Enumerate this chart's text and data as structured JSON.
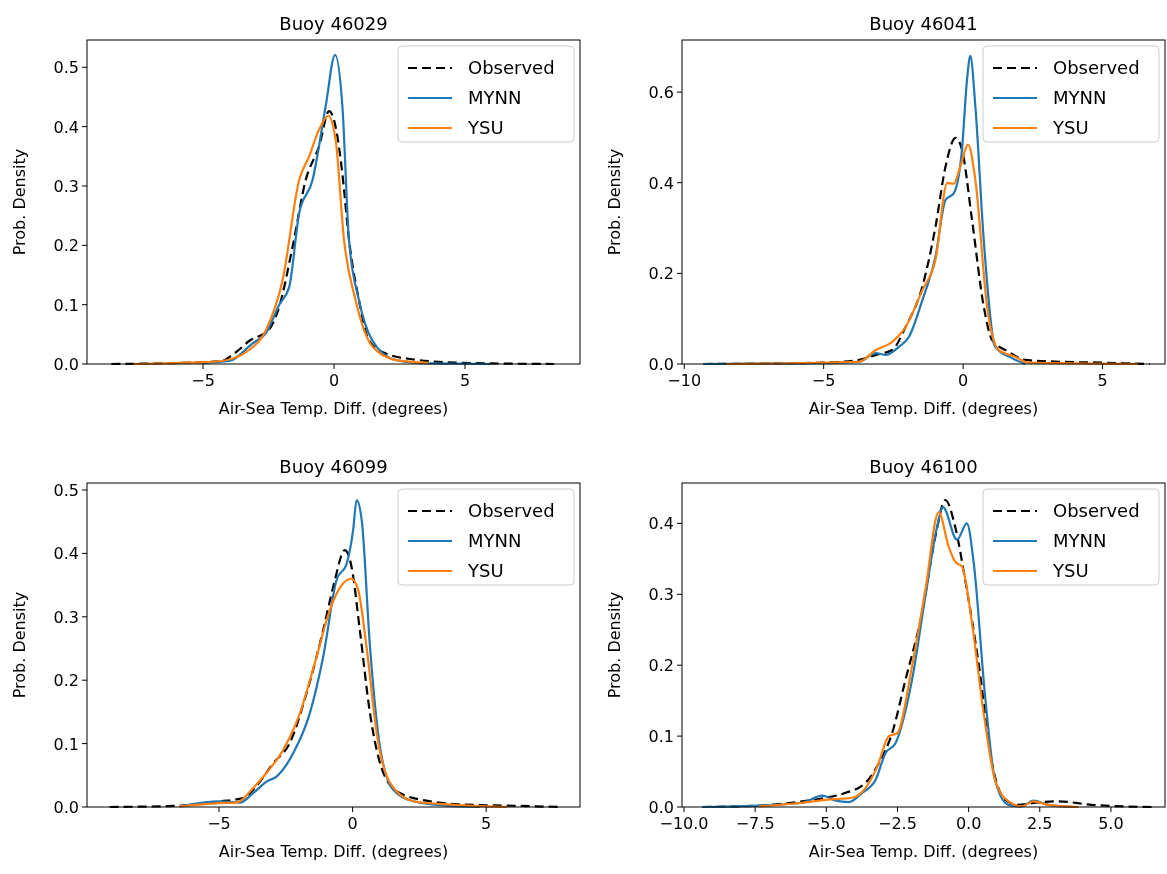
{
  "chart_data": [
    {
      "type": "line",
      "title": "Buoy 46029",
      "xlabel": "Air-Sea Temp. Diff. (degrees)",
      "ylabel": "Prob. Density",
      "xlim": [
        -9.43,
        9.39
      ],
      "ylim": [
        0,
        0.546
      ],
      "xticks": [
        -5,
        0,
        5
      ],
      "yticks": [
        {
          "value": 0,
          "label": "0.0"
        },
        {
          "value": 0.1,
          "label": "0.1"
        },
        {
          "value": 0.2,
          "label": "0.2"
        },
        {
          "value": 0.3,
          "label": "0.3"
        },
        {
          "value": 0.4,
          "label": "0.4"
        },
        {
          "value": 0.5,
          "label": "0.5"
        }
      ],
      "grid": false,
      "legend": "top right",
      "series": [
        {
          "name": "Observed",
          "color": "#000000",
          "line_style": "dashed",
          "x": [
            -8.5,
            -5,
            -4.3,
            -3.8,
            -3.2,
            -2.5,
            -2.09,
            -1.58,
            -1.08,
            -0.57,
            -0.19,
            0.06,
            0.32,
            0.57,
            0.95,
            1.33,
            1.96,
            2.97,
            4.9,
            8.4
          ],
          "values": [
            0,
            0.003,
            0.005,
            0.018,
            0.04,
            0.057,
            0.097,
            0.198,
            0.31,
            0.367,
            0.426,
            0.4,
            0.32,
            0.21,
            0.108,
            0.04,
            0.018,
            0.008,
            0.002,
            0
          ]
        },
        {
          "name": "MYNN",
          "color": "#1f77b4",
          "line_style": "solid",
          "x": [
            -5,
            -4,
            -3.1,
            -2.6,
            -2.09,
            -1.71,
            -1.33,
            -0.82,
            -0.32,
            0.04,
            0.32,
            0.57,
            0.95,
            1.46,
            2.34,
            3.6,
            6
          ],
          "values": [
            0.002,
            0.005,
            0.035,
            0.052,
            0.1,
            0.13,
            0.254,
            0.31,
            0.434,
            0.521,
            0.434,
            0.21,
            0.108,
            0.04,
            0.007,
            0.001,
            0
          ]
        },
        {
          "name": "YSU",
          "color": "#ff7f0e",
          "line_style": "solid",
          "x": [
            -7.66,
            -5,
            -4.3,
            -3.23,
            -2.6,
            -1.96,
            -1.33,
            -0.95,
            -0.57,
            -0.22,
            0.06,
            0.38,
            0.82,
            1.46,
            2.34,
            3.6
          ],
          "values": [
            0,
            0.003,
            0.005,
            0.024,
            0.057,
            0.142,
            0.31,
            0.35,
            0.395,
            0.418,
            0.378,
            0.21,
            0.108,
            0.03,
            0.007,
            0.002
          ]
        }
      ]
    },
    {
      "type": "line",
      "title": "Buoy 46041",
      "xlabel": "Air-Sea Temp. Diff. (degrees)",
      "ylabel": "Prob. Density",
      "xlim": [
        -10.08,
        7.24
      ],
      "ylim": [
        0,
        0.715
      ],
      "xticks": [
        -10,
        -5,
        0,
        5
      ],
      "yticks": [
        {
          "value": 0,
          "label": "0.0"
        },
        {
          "value": 0.2,
          "label": "0.2"
        },
        {
          "value": 0.4,
          "label": "0.4"
        },
        {
          "value": 0.6,
          "label": "0.6"
        }
      ],
      "grid": false,
      "legend": "top right",
      "series": [
        {
          "name": "Observed",
          "color": "#000000",
          "line_style": "dashed",
          "x": [
            -9.3,
            -5,
            -3.73,
            -3.13,
            -2.54,
            -2.06,
            -1.46,
            -0.99,
            -0.63,
            -0.27,
            -0.04,
            0.32,
            0.74,
            1.04,
            1.63,
            2.23,
            3.42,
            4.96,
            6.69
          ],
          "values": [
            0,
            0.003,
            0.009,
            0.02,
            0.031,
            0.082,
            0.171,
            0.303,
            0.436,
            0.499,
            0.473,
            0.318,
            0.127,
            0.053,
            0.027,
            0.009,
            0.005,
            0.003,
            0
          ]
        },
        {
          "name": "MYNN",
          "color": "#1f77b4",
          "line_style": "solid",
          "x": [
            -9.32,
            -5,
            -3.73,
            -3.13,
            -2.77,
            -2.3,
            -1.94,
            -1.46,
            -0.99,
            -0.63,
            -0.33,
            -0.04,
            0.14,
            0.26,
            0.44,
            0.74,
            1.15,
            1.75,
            2.23
          ],
          "values": [
            0,
            0.002,
            0.005,
            0.024,
            0.02,
            0.038,
            0.06,
            0.141,
            0.237,
            0.362,
            0.377,
            0.473,
            0.627,
            0.68,
            0.568,
            0.274,
            0.038,
            0.013,
            0
          ]
        },
        {
          "name": "YSU",
          "color": "#ff7f0e",
          "line_style": "solid",
          "x": [
            -8.49,
            -3.73,
            -3.13,
            -2.54,
            -2.06,
            -1.46,
            -0.99,
            -0.57,
            -0.33,
            -0.1,
            0.18,
            0.44,
            0.86,
            1.27,
            1.87,
            2.35,
            6.27
          ],
          "values": [
            0,
            0.005,
            0.031,
            0.049,
            0.082,
            0.163,
            0.23,
            0.399,
            0.398,
            0.436,
            0.484,
            0.406,
            0.127,
            0.031,
            0.016,
            0.003,
            0
          ]
        }
      ]
    },
    {
      "type": "line",
      "title": "Buoy 46099",
      "xlabel": "Air-Sea Temp. Diff. (degrees)",
      "ylabel": "Prob. Density",
      "xlim": [
        -9.94,
        8.51
      ],
      "ylim": [
        0,
        0.511
      ],
      "xticks": [
        -5,
        0,
        5
      ],
      "yticks": [
        {
          "value": 0,
          "label": "0.0"
        },
        {
          "value": 0.1,
          "label": "0.1"
        },
        {
          "value": 0.2,
          "label": "0.2"
        },
        {
          "value": 0.3,
          "label": "0.3"
        },
        {
          "value": 0.4,
          "label": "0.4"
        },
        {
          "value": 0.5,
          "label": "0.5"
        }
      ],
      "grid": false,
      "legend": "top right",
      "series": [
        {
          "name": "Observed",
          "color": "#000000",
          "line_style": "dashed",
          "x": [
            -9.09,
            -6.47,
            -4.97,
            -4.1,
            -3.6,
            -2.97,
            -2.35,
            -1.72,
            -1.1,
            -0.72,
            -0.29,
            -0.04,
            0.27,
            0.65,
            1.15,
            1.77,
            2.9,
            4.14,
            6.02,
            7.77
          ],
          "values": [
            0,
            0.002,
            0.009,
            0.014,
            0.033,
            0.069,
            0.101,
            0.18,
            0.279,
            0.348,
            0.405,
            0.379,
            0.279,
            0.148,
            0.054,
            0.022,
            0.009,
            0.004,
            0.002,
            0
          ]
        },
        {
          "name": "MYNN",
          "color": "#1f77b4",
          "line_style": "solid",
          "x": [
            -6.47,
            -4.97,
            -4.22,
            -3.72,
            -3.22,
            -2.85,
            -2.22,
            -1.6,
            -1.1,
            -0.6,
            -0.22,
            0.02,
            0.15,
            0.34,
            0.65,
            1.02,
            1.52,
            2.27,
            3.52,
            4.77
          ],
          "values": [
            0.001,
            0.009,
            0.007,
            0.022,
            0.04,
            0.048,
            0.085,
            0.148,
            0.237,
            0.358,
            0.384,
            0.437,
            0.484,
            0.453,
            0.253,
            0.096,
            0.027,
            0.009,
            0.002,
            0
          ]
        },
        {
          "name": "YSU",
          "color": "#ff7f0e",
          "line_style": "solid",
          "x": [
            -6.47,
            -4.97,
            -4.34,
            -3.72,
            -3.22,
            -2.6,
            -1.97,
            -1.35,
            -0.85,
            -0.41,
            -0.04,
            0.21,
            0.52,
            0.9,
            1.4,
            2.27,
            3.52,
            5.77
          ],
          "values": [
            0.001,
            0.006,
            0.007,
            0.03,
            0.054,
            0.09,
            0.148,
            0.237,
            0.311,
            0.35,
            0.36,
            0.342,
            0.253,
            0.117,
            0.038,
            0.009,
            0.004,
            0
          ]
        }
      ]
    },
    {
      "type": "line",
      "title": "Buoy 46100",
      "xlabel": "Air-Sea Temp. Diff. (degrees)",
      "ylabel": "Prob. Density",
      "xlim": [
        -10.07,
        6.9
      ],
      "ylim": [
        0,
        0.457
      ],
      "xticks": [
        {
          "value": -10,
          "label": "−10.0"
        },
        {
          "value": -7.5,
          "label": "−7.5"
        },
        {
          "value": -5,
          "label": "−5.0"
        },
        {
          "value": -2.5,
          "label": "−2.5"
        },
        {
          "value": 0,
          "label": "0.0"
        },
        {
          "value": 2.5,
          "label": "2.5"
        },
        {
          "value": 5,
          "label": "5.0"
        }
      ],
      "yticks": [
        {
          "value": 0,
          "label": "0.0"
        },
        {
          "value": 0.1,
          "label": "0.1"
        },
        {
          "value": 0.2,
          "label": "0.2"
        },
        {
          "value": 0.3,
          "label": "0.3"
        },
        {
          "value": 0.4,
          "label": "0.4"
        }
      ],
      "grid": false,
      "legend": "top right",
      "series": [
        {
          "name": "Observed",
          "color": "#000000",
          "line_style": "dashed",
          "x": [
            -9.35,
            -7.36,
            -5.84,
            -5.02,
            -4.32,
            -3.62,
            -3.15,
            -2.69,
            -2.22,
            -1.64,
            -1.17,
            -0.82,
            -0.47,
            -0.12,
            0.35,
            0.82,
            1.29,
            1.75,
            2.34,
            3.15,
            4.32,
            6.43
          ],
          "values": [
            0,
            0.002,
            0.008,
            0.013,
            0.02,
            0.034,
            0.062,
            0.104,
            0.179,
            0.273,
            0.381,
            0.433,
            0.395,
            0.32,
            0.203,
            0.062,
            0.01,
            0.003,
            0.006,
            0.008,
            0.003,
            0
          ]
        },
        {
          "name": "MYNN",
          "color": "#1f77b4",
          "line_style": "solid",
          "x": [
            -9.35,
            -7.36,
            -5.84,
            -5.14,
            -4.67,
            -4.21,
            -3.74,
            -3.27,
            -2.92,
            -2.57,
            -1.99,
            -1.52,
            -1.11,
            -0.9,
            -0.41,
            -0.06,
            0.18,
            0.58,
            0.93,
            1.4,
            1.87,
            2.28,
            2.8,
            3.74
          ],
          "values": [
            0,
            0.002,
            0.006,
            0.016,
            0.009,
            0.007,
            0.02,
            0.038,
            0.076,
            0.09,
            0.179,
            0.297,
            0.395,
            0.423,
            0.377,
            0.4,
            0.344,
            0.156,
            0.038,
            0.003,
            0.001,
            0.009,
            0.003,
            0
          ]
        },
        {
          "name": "YSU",
          "color": "#ff7f0e",
          "line_style": "solid",
          "x": [
            -7.36,
            -5.84,
            -5.02,
            -4.09,
            -3.62,
            -3.21,
            -2.8,
            -2.51,
            -1.99,
            -1.52,
            -1.05,
            -0.7,
            -0.47,
            -0.23,
            0.12,
            0.53,
            0.93,
            1.4,
            1.87,
            2.28,
            2.8,
            3.86
          ],
          "values": [
            0.001,
            0.006,
            0.01,
            0.013,
            0.027,
            0.057,
            0.1,
            0.104,
            0.198,
            0.306,
            0.416,
            0.367,
            0.346,
            0.339,
            0.259,
            0.132,
            0.038,
            0.008,
            0.001,
            0.008,
            0.003,
            0
          ]
        }
      ]
    }
  ]
}
